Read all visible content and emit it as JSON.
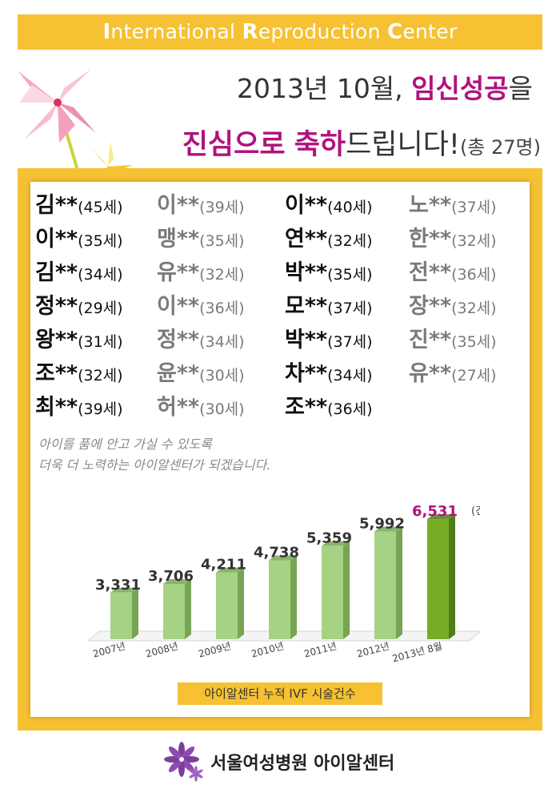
{
  "header": {
    "parts": [
      {
        "cap": "I",
        "rest": "nternational "
      },
      {
        "cap": "R",
        "rest": "eproduction "
      },
      {
        "cap": "C",
        "rest": "enter"
      }
    ]
  },
  "title": {
    "line1_prefix": "2013년 10월, ",
    "line1_highlight": "임신성공",
    "line1_suffix": "을",
    "line2_highlight1": "진심으로",
    "line2_space": " ",
    "line2_highlight2": "축하",
    "line2_suffix": "드립니다!",
    "line2_count": "(총 27명)"
  },
  "names": [
    {
      "n": "김**",
      "a": "(45세)",
      "tone": "dark"
    },
    {
      "n": "이**",
      "a": "(39세)",
      "tone": "gray"
    },
    {
      "n": "이**",
      "a": "(40세)",
      "tone": "dark"
    },
    {
      "n": "노**",
      "a": "(37세)",
      "tone": "gray"
    },
    {
      "n": "이**",
      "a": "(35세)",
      "tone": "dark"
    },
    {
      "n": "맹**",
      "a": "(35세)",
      "tone": "gray"
    },
    {
      "n": "연**",
      "a": "(32세)",
      "tone": "dark"
    },
    {
      "n": "한**",
      "a": "(32세)",
      "tone": "gray"
    },
    {
      "n": "김**",
      "a": "(34세)",
      "tone": "dark"
    },
    {
      "n": "유**",
      "a": "(32세)",
      "tone": "gray"
    },
    {
      "n": "박**",
      "a": "(35세)",
      "tone": "dark"
    },
    {
      "n": "전**",
      "a": "(36세)",
      "tone": "gray"
    },
    {
      "n": "정**",
      "a": "(29세)",
      "tone": "dark"
    },
    {
      "n": "이**",
      "a": "(36세)",
      "tone": "gray"
    },
    {
      "n": "모**",
      "a": "(37세)",
      "tone": "dark"
    },
    {
      "n": "장**",
      "a": "(32세)",
      "tone": "gray"
    },
    {
      "n": "왕**",
      "a": "(31세)",
      "tone": "dark"
    },
    {
      "n": "정**",
      "a": "(34세)",
      "tone": "gray"
    },
    {
      "n": "박**",
      "a": "(37세)",
      "tone": "dark"
    },
    {
      "n": "진**",
      "a": "(35세)",
      "tone": "gray"
    },
    {
      "n": "조**",
      "a": "(32세)",
      "tone": "dark"
    },
    {
      "n": "윤**",
      "a": "(30세)",
      "tone": "gray"
    },
    {
      "n": "차**",
      "a": "(34세)",
      "tone": "dark"
    },
    {
      "n": "유**",
      "a": "(27세)",
      "tone": "gray"
    },
    {
      "n": "최**",
      "a": "(39세)",
      "tone": "dark"
    },
    {
      "n": "허**",
      "a": "(30세)",
      "tone": "gray"
    },
    {
      "n": "조**",
      "a": "(36세)",
      "tone": "dark"
    }
  ],
  "message": {
    "line1": "아이를 품에 안고 가실 수 있도록",
    "line2": "더욱 더 노력하는 아이알센터가 되겠습니다."
  },
  "chart_data": {
    "type": "bar",
    "title": "아이알센터 누적 IVF 시술건수",
    "categories": [
      "2007년",
      "2008년",
      "2009년",
      "2010년",
      "2011년",
      "2012년",
      "2013년 8월"
    ],
    "values": [
      3331,
      3706,
      4211,
      4738,
      5359,
      5992,
      6531
    ],
    "value_labels": [
      "3,331",
      "3,706",
      "4,211",
      "4,738",
      "5,359",
      "5,992",
      "6,531"
    ],
    "unit_label": "(건)",
    "highlight_index": 6,
    "colors": {
      "bar": "#a6d283",
      "bar_side": "#77a455",
      "highlight": "#77ad25",
      "highlight_side": "#4f7d17",
      "highlight_label": "#b0127f"
    }
  },
  "footer": {
    "logo_text": "서울여성병원 아이알센터"
  },
  "colors": {
    "accent": "#f6c132",
    "magenta": "#b0127f"
  }
}
